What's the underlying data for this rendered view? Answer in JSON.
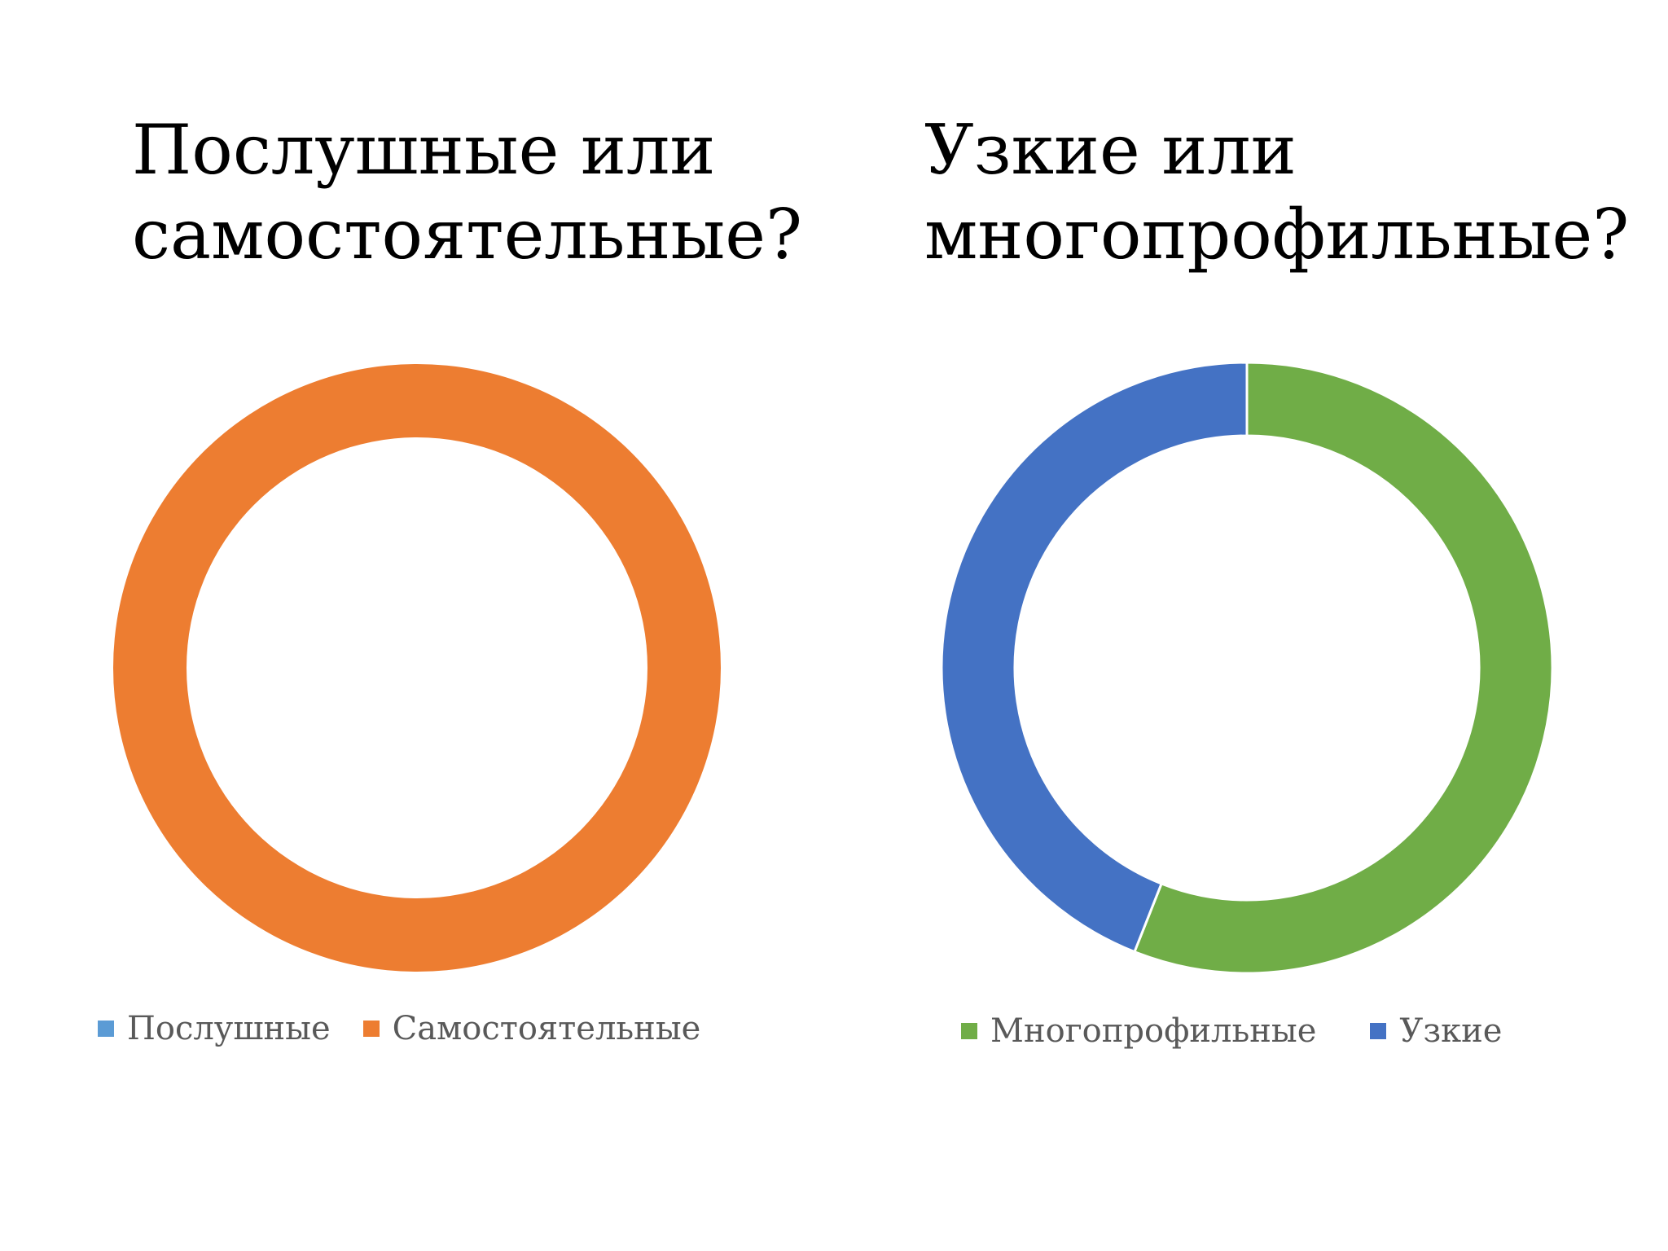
{
  "titles": {
    "left": [
      "Послушные или",
      "самостоятельные?"
    ],
    "right": [
      "Узкие или",
      "многопрофильные?"
    ]
  },
  "chart_data": [
    {
      "type": "pie",
      "variant": "doughnut",
      "categories": [
        "Послушные",
        "Самостоятельные"
      ],
      "values": [
        0,
        100
      ],
      "colors": [
        "#5B9BD5",
        "#ED7D31"
      ],
      "legend_position": "bottom"
    },
    {
      "type": "pie",
      "variant": "doughnut",
      "categories": [
        "Многопрофильные",
        "Узкие"
      ],
      "values": [
        56,
        44
      ],
      "colors": [
        "#70AD47",
        "#4472C4"
      ],
      "legend_position": "bottom"
    }
  ]
}
